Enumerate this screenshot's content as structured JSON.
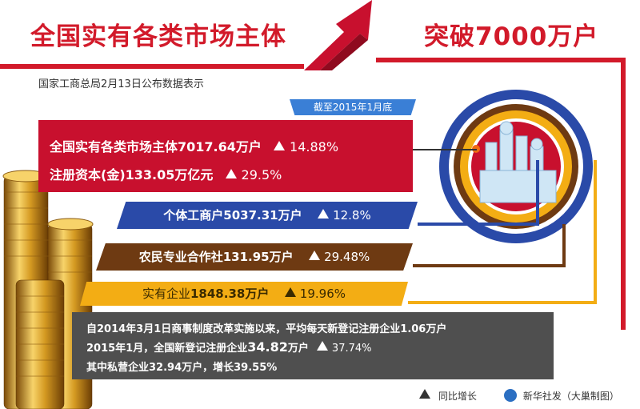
{
  "header": {
    "title_left": "全国实有各类市场主体",
    "title_right": "突破7000万户",
    "subtitle": "国家工商总局2月13日公布数据表示"
  },
  "tag_date": "截至2015年1月底",
  "banners": {
    "market": {
      "label": "全国实有各类市场主体7017.64万户",
      "growth": "14.88%"
    },
    "capital": {
      "label": "注册资本(金)133.05万亿元",
      "growth": "29.5%"
    },
    "individual": {
      "label": "个体工商户5037.31万户",
      "growth": "12.8%"
    },
    "coop": {
      "label": "农民专业合作社131.95万户",
      "growth": "29.48%"
    },
    "enterprise": {
      "label_prefix": "实有企业",
      "value": "1848.38万户",
      "growth": "19.96%"
    }
  },
  "notes": {
    "line1": "自2014年3月1日商事制度改革实施以来，平均每天新登记注册企业1.06万户",
    "line2_prefix": "2015年1月，全国新登记注册企业",
    "line2_value": "34.82",
    "line2_unit": "万户",
    "line2_growth": "37.74%",
    "line3": "其中私营企业32.94万户，增长39.55%"
  },
  "legend": {
    "label": "同比增长"
  },
  "credit": "新华社发（大巢制图）",
  "colors": {
    "red": "#c8102e",
    "blue": "#2a4aa8",
    "brown": "#6e3a12",
    "yellow": "#f3ad14",
    "gray": "#4f4f4f"
  }
}
